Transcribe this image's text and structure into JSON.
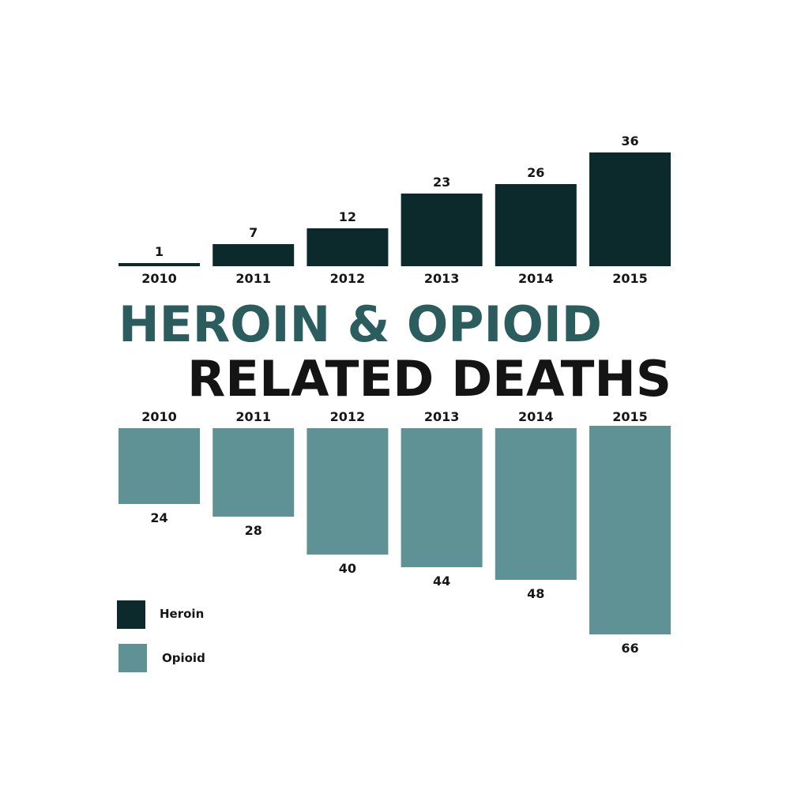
{
  "colors": {
    "heroin": "#0c2a2b",
    "opioid": "#5e9294",
    "title_line1": "#2b5c5e",
    "title_line2": "#141414"
  },
  "title": {
    "line1": "HEROIN & OPIOID",
    "line2": "RELATED DEATHS"
  },
  "legend": {
    "heroin": "Heroin",
    "opioid": "Opioid"
  },
  "chart_data": {
    "type": "bar",
    "categories": [
      "2010",
      "2011",
      "2012",
      "2013",
      "2014",
      "2015"
    ],
    "series": [
      {
        "name": "Heroin",
        "values": [
          1,
          7,
          12,
          23,
          26,
          36
        ]
      },
      {
        "name": "Opioid",
        "values": [
          24,
          28,
          40,
          44,
          48,
          66
        ]
      }
    ],
    "title": "HEROIN & OPIOID RELATED DEATHS",
    "legend_position": "bottom-left",
    "grid": false
  }
}
